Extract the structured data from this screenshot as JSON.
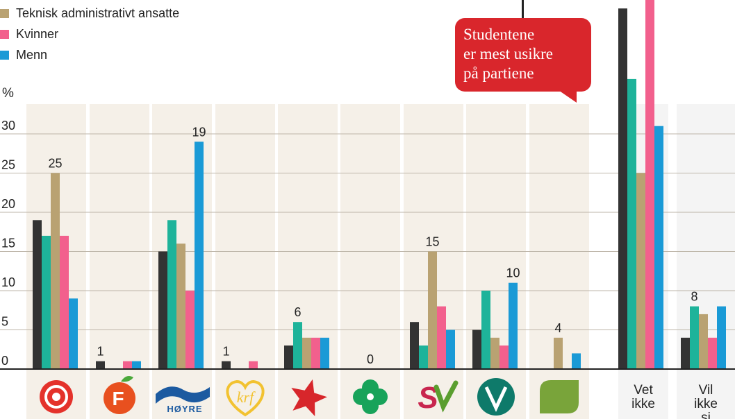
{
  "legend": [
    {
      "label": "Teknisk administrativt ansatte",
      "color": "#b9a272"
    },
    {
      "label": "Kvinner",
      "color": "#f2608d"
    },
    {
      "label": "Menn",
      "color": "#1a9ad6"
    }
  ],
  "callout": {
    "lines": [
      "Studentene",
      "er mest usikre",
      "på partiene"
    ],
    "color": "#d9262c"
  },
  "chart_data": {
    "type": "bar",
    "ylabel": "%",
    "ylim": [
      0,
      30
    ],
    "yticks": [
      "0",
      "5",
      "10",
      "15",
      "20",
      "25",
      "30"
    ],
    "colors": {
      "series_1": "#333333",
      "series_2": "#1eb39a",
      "series_3": "#b9a272",
      "series_4": "#f2608d",
      "series_5": "#1a9ad6"
    },
    "categories": [
      {
        "id": "ap",
        "icon": "rose-icon",
        "label": "",
        "top_label": "25",
        "values": [
          19,
          17,
          25,
          17,
          9
        ]
      },
      {
        "id": "frp",
        "icon": "apple-icon",
        "label": "",
        "top_label": "1",
        "values": [
          1,
          0,
          0,
          1,
          1
        ]
      },
      {
        "id": "h",
        "icon": "hoyre-icon",
        "label": "",
        "top_label": "19",
        "values": [
          15,
          19,
          16,
          10,
          29
        ]
      },
      {
        "id": "krf",
        "icon": "krf-icon",
        "label": "",
        "top_label": "1",
        "values": [
          1,
          0,
          0,
          1,
          0
        ]
      },
      {
        "id": "r",
        "icon": "star-icon",
        "label": "",
        "top_label": "6",
        "values": [
          3,
          6,
          4,
          4,
          4
        ]
      },
      {
        "id": "sp",
        "icon": "clover-icon",
        "label": "",
        "top_label": "0",
        "values": [
          0,
          0,
          0,
          0,
          0
        ]
      },
      {
        "id": "sv",
        "icon": "sv-icon",
        "label": "",
        "top_label": "15",
        "values": [
          6,
          3,
          15,
          8,
          5
        ]
      },
      {
        "id": "v",
        "icon": "v-icon",
        "label": "",
        "top_label": "10",
        "values": [
          5,
          10,
          4,
          3,
          11
        ]
      },
      {
        "id": "mdg",
        "icon": "green-leaf-icon",
        "label": "",
        "top_label": "4",
        "values": [
          0,
          0,
          4,
          0,
          2
        ]
      },
      {
        "id": "vet",
        "icon": "",
        "label": "Vet ikke",
        "top_label": "",
        "values": [
          46,
          37,
          25,
          55,
          31
        ]
      },
      {
        "id": "vil",
        "icon": "",
        "label": "Vil ikke si",
        "top_label": "8",
        "values": [
          4,
          8,
          7,
          4,
          8
        ]
      }
    ],
    "icon_colors": {
      "ap": "#e4322b",
      "frp": "#e8501f",
      "h": "#1c5aa0",
      "krf": "#f2c230",
      "r": "#d7262b",
      "sp": "#18a35a",
      "sv": "#c8264f",
      "v": "#0e7a6a",
      "mdg": "#79a43a"
    }
  }
}
